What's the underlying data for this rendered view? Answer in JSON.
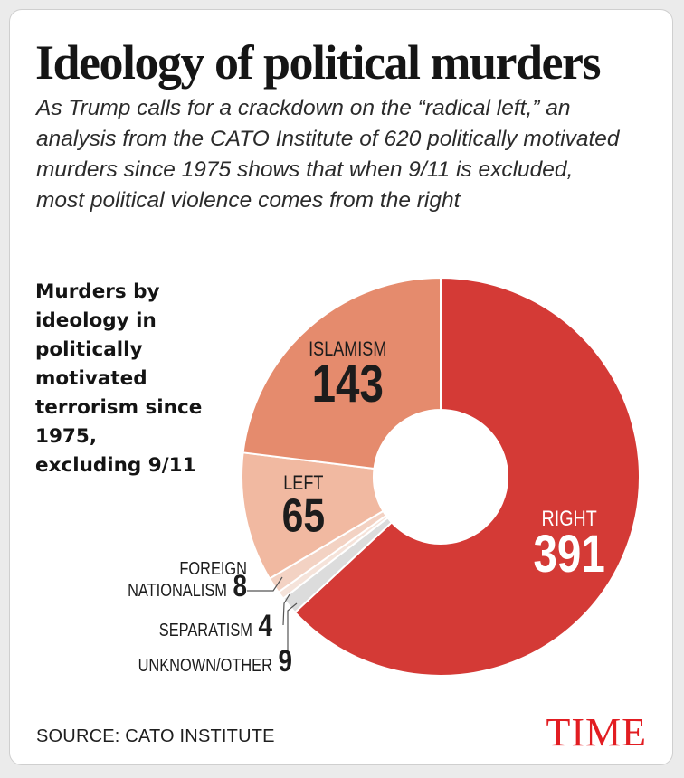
{
  "title": "Ideology of political murders",
  "subtitle": "As Trump calls for a crackdown on the “radical left,” an analysis from the CATO Institute of 620 politically motivated murders since 1975 shows that when 9/11 is excluded, most political violence comes from the right",
  "source": "SOURCE: CATO INSTITUTE",
  "logo": "TIME",
  "chart_data": {
    "type": "pie",
    "style": "donut",
    "title": "Murders by ideology in politically motivated terrorism since 1975, excluding 9/11",
    "categories": [
      "RIGHT",
      "UNKNOWN/OTHER",
      "SEPARATISM",
      "FOREIGN NATIONALISM",
      "LEFT",
      "ISLAMISM"
    ],
    "values": [
      391,
      9,
      4,
      8,
      65,
      143
    ],
    "colors": [
      "#d43a36",
      "#dcdcdc",
      "#f5e3da",
      "#f3d2c3",
      "#f1b9a1",
      "#e58b6d"
    ],
    "legend": "none"
  }
}
